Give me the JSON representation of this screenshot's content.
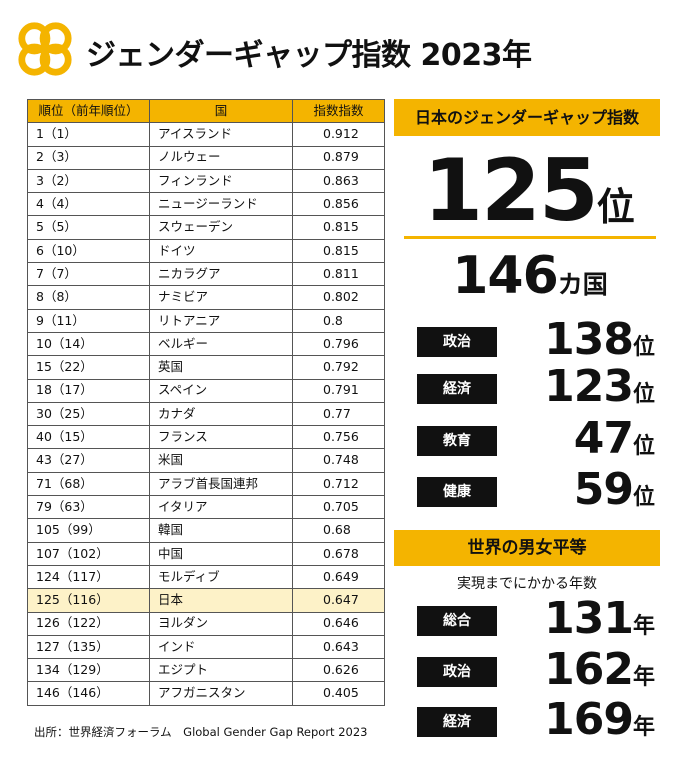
{
  "title": "ジェンダーギャップ指数 2023年",
  "chart_data": {
    "type": "table",
    "columns": [
      "順位（前年順位）",
      "国",
      "指数指数"
    ],
    "rows": [
      [
        "1（1）",
        "アイスランド",
        "0.912"
      ],
      [
        "2（3）",
        "ノルウェー",
        "0.879"
      ],
      [
        "3（2）",
        "フィンランド",
        "0.863"
      ],
      [
        "4（4）",
        "ニュージーランド",
        "0.856"
      ],
      [
        "5（5）",
        "スウェーデン",
        "0.815"
      ],
      [
        "6（10）",
        "ドイツ",
        "0.815"
      ],
      [
        "7（7）",
        "ニカラグア",
        "0.811"
      ],
      [
        "8（8）",
        "ナミビア",
        "0.802"
      ],
      [
        "9（11）",
        "リトアニア",
        "0.8"
      ],
      [
        "10（14）",
        "ベルギー",
        "0.796"
      ],
      [
        "15（22）",
        "英国",
        "0.792"
      ],
      [
        "18（17）",
        "スペイン",
        "0.791"
      ],
      [
        "30（25）",
        "カナダ",
        "0.77"
      ],
      [
        "40（15）",
        "フランス",
        "0.756"
      ],
      [
        "43（27）",
        "米国",
        "0.748"
      ],
      [
        "71（68）",
        "アラブ首長国連邦",
        "0.712"
      ],
      [
        "79（63）",
        "イタリア",
        "0.705"
      ],
      [
        "105（99）",
        "韓国",
        "0.68"
      ],
      [
        "107（102）",
        "中国",
        "0.678"
      ],
      [
        "124（117）",
        "モルディブ",
        "0.649"
      ],
      [
        "125（116）",
        "日本",
        "0.647"
      ],
      [
        "126（122）",
        "ヨルダン",
        "0.646"
      ],
      [
        "127（135）",
        "インド",
        "0.643"
      ],
      [
        "134（129）",
        "エジプト",
        "0.626"
      ],
      [
        "146（146）",
        "アフガニスタン",
        "0.405"
      ]
    ],
    "highlight_row": 20,
    "highlight_color": "#fdf2c8",
    "header_color": "#f4b400"
  },
  "source": "出所：世界経済フォーラム　Global Gender Gap Report 2023",
  "japan": {
    "heading": "日本のジェンダーギャップ指数",
    "rank": "125",
    "rank_unit": "位",
    "total": "146",
    "total_unit": "カ国",
    "categories": [
      {
        "label": "政治",
        "value": "138",
        "unit": "位"
      },
      {
        "label": "経済",
        "value": "123",
        "unit": "位"
      },
      {
        "label": "教育",
        "value": "47",
        "unit": "位"
      },
      {
        "label": "健康",
        "value": "59",
        "unit": "位"
      }
    ]
  },
  "world": {
    "heading": "世界の男女平等",
    "subtitle": "実現までにかかる年数",
    "items": [
      {
        "label": "総合",
        "value": "131",
        "unit": "年"
      },
      {
        "label": "政治",
        "value": "162",
        "unit": "年"
      },
      {
        "label": "経済",
        "value": "169",
        "unit": "年"
      }
    ]
  },
  "colors": {
    "accent": "#f4b400",
    "label_bg": "#111111"
  },
  "logo_icon": "four-petal-logo-icon"
}
